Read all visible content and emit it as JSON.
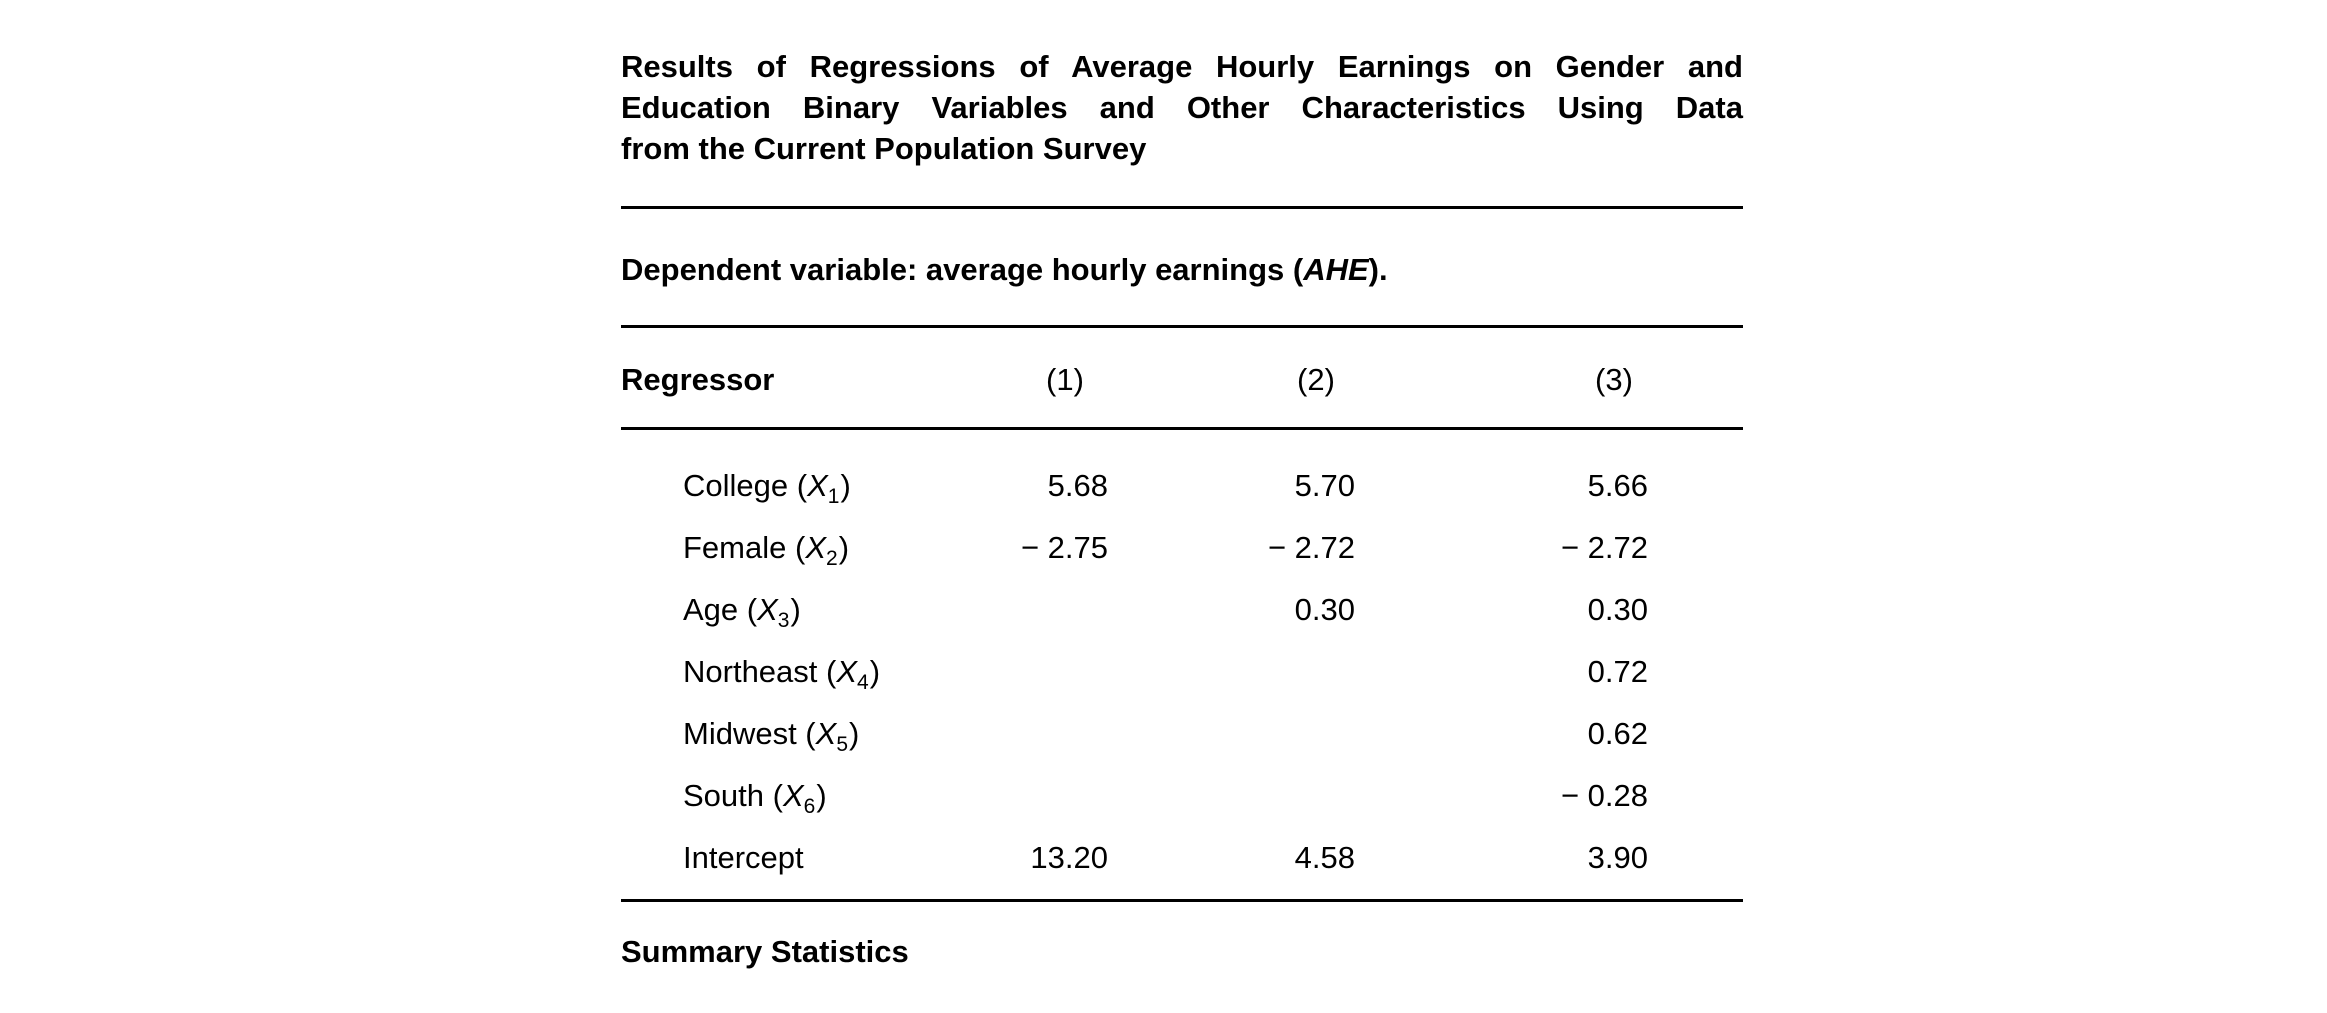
{
  "page": {
    "background": "#ffffff",
    "text_color": "#000000"
  },
  "title": {
    "lines": [
      "Results of Regressions of Average Hourly Earnings on Gender and",
      "Education Binary Variables and Other Characteristics Using Data",
      "from the Current Population Survey"
    ]
  },
  "subtitle": {
    "prefix": "Dependent variable: average hourly earnings (",
    "em": "AHE",
    "suffix": ")."
  },
  "table": {
    "header": {
      "label": "Regressor",
      "cols": [
        "(1)",
        "(2)",
        "(3)"
      ]
    },
    "rows": [
      {
        "prefix": "College (",
        "var": "X",
        "sub": "1",
        "suffix": ")",
        "values": [
          "5.68",
          "5.70",
          "5.66"
        ]
      },
      {
        "prefix": "Female (",
        "var": "X",
        "sub": "2",
        "suffix": ")",
        "values": [
          "− 2.75",
          "− 2.72",
          "− 2.72"
        ]
      },
      {
        "prefix": "Age (",
        "var": "X",
        "sub": "3",
        "suffix": ")",
        "values": [
          "",
          "0.30",
          "0.30"
        ]
      },
      {
        "prefix": "Northeast (",
        "var": "X",
        "sub": "4",
        "suffix": ")",
        "values": [
          "",
          "",
          "0.72"
        ]
      },
      {
        "prefix": "Midwest (",
        "var": "X",
        "sub": "5",
        "suffix": ")",
        "values": [
          "",
          "",
          "0.62"
        ]
      },
      {
        "prefix": "South (",
        "var": "X",
        "sub": "6",
        "suffix": ")",
        "values": [
          "",
          "",
          "− 0.28"
        ]
      },
      {
        "prefix": "Intercept",
        "var": "",
        "sub": "",
        "suffix": "",
        "values": [
          "13.20",
          "4.58",
          "3.90"
        ]
      }
    ]
  },
  "footer": {
    "heading": "Summary Statistics"
  }
}
